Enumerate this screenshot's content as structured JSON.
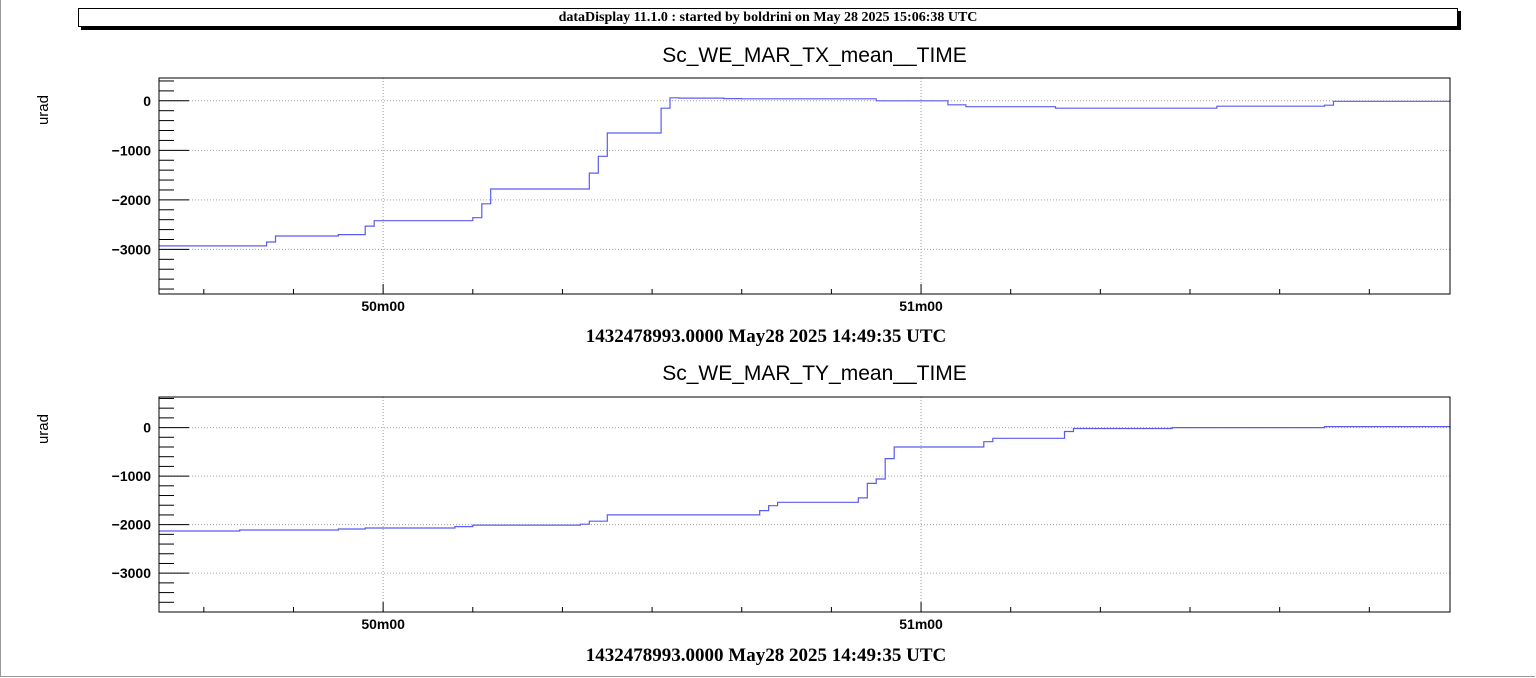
{
  "header": {
    "text": "dataDisplay 11.1.0 : started by boldrini on May 28 2025 15:06:38 UTC"
  },
  "chart_data": [
    {
      "type": "line",
      "step": true,
      "title": "Sc_WE_MAR_TX_mean__TIME",
      "ylabel": "urad",
      "xlabel": "1432478993.0000 May28 2025 14:49:35 UTC",
      "x_unit": "seconds after 14:49:35 UTC",
      "xlim": [
        0,
        144
      ],
      "ylim": [
        -3900,
        460
      ],
      "x_ticks": [
        {
          "value": 25,
          "label": "50m00"
        },
        {
          "value": 85,
          "label": "51m00"
        }
      ],
      "y_ticks": [
        {
          "value": 0,
          "label": "0"
        },
        {
          "value": -1000,
          "label": "−1000"
        },
        {
          "value": -2000,
          "label": "−2000"
        },
        {
          "value": -3000,
          "label": "−3000"
        }
      ],
      "grid": true,
      "line_color": "#5b5bf0",
      "series": [
        {
          "x": [
            0,
            12,
            13,
            20,
            23,
            24,
            35,
            36,
            37,
            48,
            49,
            50,
            56,
            57,
            58,
            63,
            65,
            80,
            88,
            90,
            95,
            100,
            117,
            118,
            130,
            131,
            144
          ],
          "y": [
            -2930,
            -2850,
            -2730,
            -2700,
            -2530,
            -2420,
            -2360,
            -2080,
            -1780,
            -1460,
            -1120,
            -650,
            -150,
            60,
            55,
            45,
            40,
            0,
            -80,
            -120,
            -120,
            -150,
            -150,
            -110,
            -90,
            -10,
            0
          ]
        }
      ]
    },
    {
      "type": "line",
      "step": true,
      "title": "Sc_WE_MAR_TY_mean__TIME",
      "ylabel": "urad",
      "xlabel": "1432478993.0000 May28 2025 14:49:35 UTC",
      "x_unit": "seconds after 14:49:35 UTC",
      "xlim": [
        0,
        144
      ],
      "ylim": [
        -3800,
        630
      ],
      "x_ticks": [
        {
          "value": 25,
          "label": "50m00"
        },
        {
          "value": 85,
          "label": "51m00"
        }
      ],
      "y_ticks": [
        {
          "value": 0,
          "label": "0"
        },
        {
          "value": -1000,
          "label": "−1000"
        },
        {
          "value": -2000,
          "label": "−2000"
        },
        {
          "value": -3000,
          "label": "−3000"
        }
      ],
      "grid": true,
      "line_color": "#5b5bf0",
      "series": [
        {
          "x": [
            0,
            9,
            20,
            23,
            33,
            35,
            47,
            48,
            50,
            67,
            68,
            69,
            78,
            79,
            80,
            81,
            82,
            91,
            92,
            93,
            101,
            102,
            113,
            130,
            144
          ],
          "y": [
            -2130,
            -2110,
            -2090,
            -2070,
            -2040,
            -2010,
            -1990,
            -1930,
            -1800,
            -1710,
            -1610,
            -1540,
            -1450,
            -1150,
            -1060,
            -640,
            -400,
            -400,
            -290,
            -220,
            -80,
            -20,
            0,
            20,
            30
          ]
        }
      ]
    }
  ]
}
